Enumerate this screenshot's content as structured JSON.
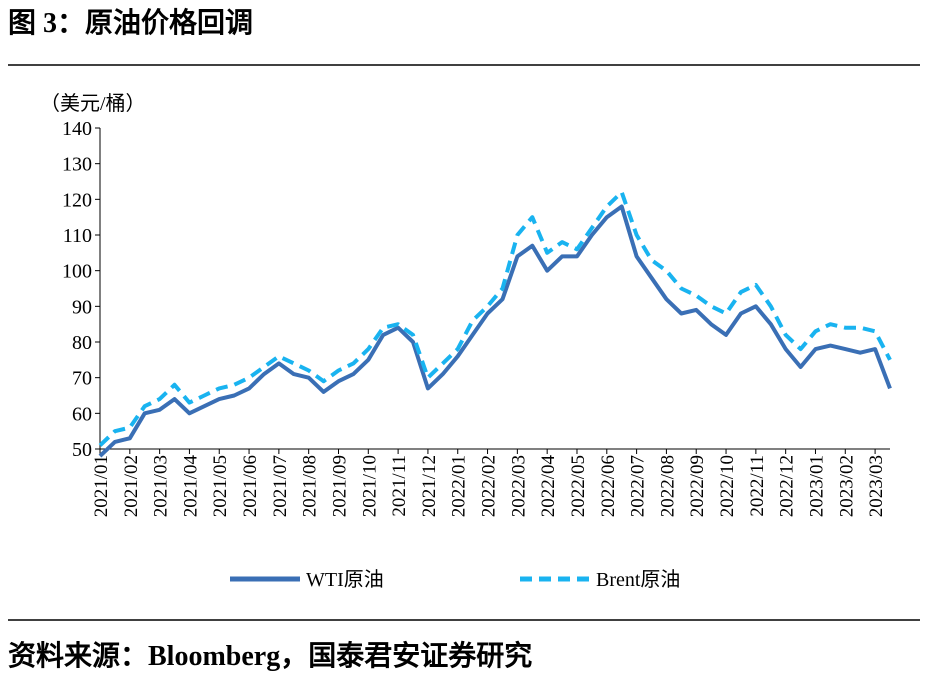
{
  "chart_data": {
    "type": "line",
    "title": "图 3：原油价格回调",
    "y_label": "（美元/桶）",
    "source": "资料来源：Bloomberg，国泰君安证券研究",
    "categories": [
      "2021/01",
      null,
      "2021/02",
      null,
      "2021/03",
      null,
      "2021/04",
      null,
      "2021/05",
      null,
      "2021/06",
      null,
      "2021/07",
      null,
      "2021/08",
      null,
      "2021/09",
      null,
      "2021/10",
      null,
      "2021/11",
      null,
      "2021/12",
      null,
      "2022/01",
      null,
      "2022/02",
      null,
      "2022/03",
      null,
      "2022/04",
      null,
      "2022/05",
      null,
      "2022/06",
      null,
      "2022/07",
      null,
      "2022/08",
      null,
      "2022/09",
      null,
      "2022/10",
      null,
      "2022/11",
      null,
      "2022/12",
      null,
      "2023/01",
      null,
      "2023/02",
      null,
      "2023/03",
      null
    ],
    "series": [
      {
        "name": "WTI原油",
        "color": "#3a6fb5",
        "dash": false,
        "values": [
          48,
          52,
          53,
          60,
          61,
          64,
          60,
          62,
          64,
          65,
          67,
          71,
          74,
          71,
          70,
          66,
          69,
          71,
          75,
          82,
          84,
          80,
          67,
          71,
          76,
          82,
          88,
          92,
          104,
          107,
          100,
          104,
          104,
          110,
          115,
          118,
          104,
          98,
          92,
          88,
          89,
          85,
          82,
          88,
          90,
          85,
          78,
          73,
          78,
          79,
          78,
          77,
          78,
          67
        ]
      },
      {
        "name": "Brent原油",
        "color": "#19b3f0",
        "dash": true,
        "values": [
          51,
          55,
          56,
          62,
          64,
          68,
          63,
          65,
          67,
          68,
          70,
          73,
          76,
          74,
          72,
          69,
          72,
          74,
          78,
          84,
          85,
          82,
          70,
          74,
          78,
          86,
          90,
          95,
          110,
          115,
          105,
          108,
          106,
          112,
          118,
          122,
          110,
          103,
          100,
          95,
          93,
          90,
          88,
          94,
          96,
          90,
          82,
          78,
          83,
          85,
          84,
          84,
          83,
          75
        ]
      }
    ],
    "ylim": [
      50,
      140
    ],
    "yticks": [
      50,
      60,
      70,
      80,
      90,
      100,
      110,
      120,
      130,
      140
    ],
    "grid": false
  }
}
